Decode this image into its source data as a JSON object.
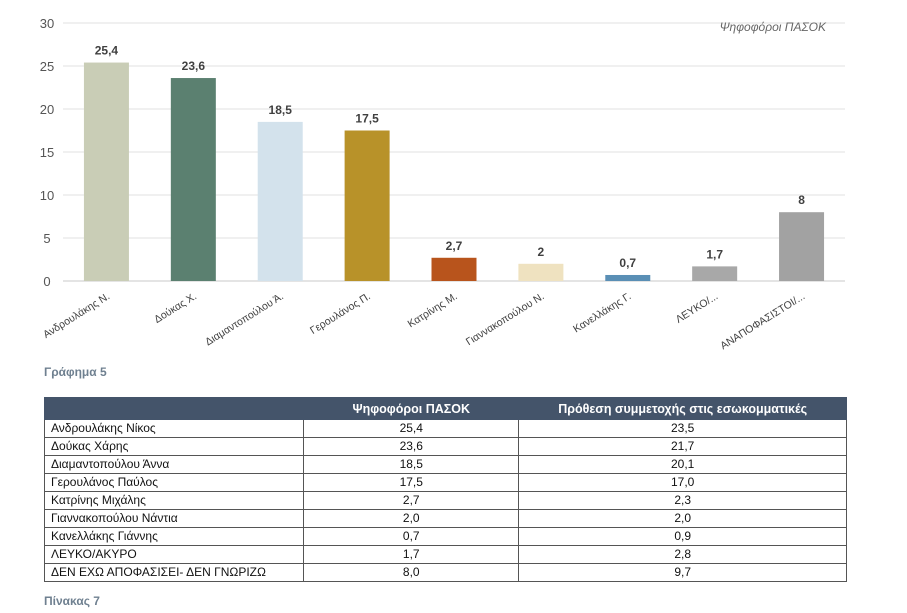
{
  "chart_data": {
    "type": "bar",
    "legend_note": "Ψηφοφόροι ΠΑΣΟΚ",
    "categories": [
      "Ανδρουλάκης Ν.",
      "Δούκας Χ.",
      "Διαμαντοπούλου Ά.",
      "Γερουλάνος Π.",
      "Κατρίνης Μ.",
      "Γιαννακοπούλου Ν.",
      "Κανελλάκης Γ.",
      "ΛΕΥΚΟ/...",
      "ΑΝΑΠΟΦΑΣΙΣΤΟΙ/..."
    ],
    "values": [
      25.4,
      23.6,
      18.5,
      17.5,
      2.7,
      2,
      0.7,
      1.7,
      8
    ],
    "value_labels": [
      "25,4",
      "23,6",
      "18,5",
      "17,5",
      "2,7",
      "2",
      "0,7",
      "1,7",
      "8"
    ],
    "colors": [
      "#c9cdb6",
      "#5b8070",
      "#d3e2ec",
      "#b89229",
      "#b8541c",
      "#efe2c0",
      "#5a8fb5",
      "#a8a8a8",
      "#a2a2a2"
    ],
    "ylim": [
      0,
      30
    ],
    "yticks": [
      0,
      5,
      10,
      15,
      20,
      25,
      30
    ],
    "grid": true
  },
  "captions": {
    "chart": "Γράφημα 5",
    "table": "Πίνακας 7"
  },
  "table": {
    "headers": [
      "",
      "Ψηφοφόροι ΠΑΣΟΚ",
      "Πρόθεση συμμετοχής στις εσωκομματικές"
    ],
    "rows": [
      [
        "Ανδρουλάκης Νίκος",
        "25,4",
        "23,5"
      ],
      [
        "Δούκας Χάρης",
        "23,6",
        "21,7"
      ],
      [
        "Διαμαντοπούλου Άννα",
        "18,5",
        "20,1"
      ],
      [
        "Γερουλάνος Παύλος",
        "17,5",
        "17,0"
      ],
      [
        "Κατρίνης Μιχάλης",
        "2,7",
        "2,3"
      ],
      [
        "Γιαννακοπούλου Νάντια",
        "2,0",
        "2,0"
      ],
      [
        "Κανελλάκης Γιάννης",
        "0,7",
        "0,9"
      ],
      [
        "ΛΕΥΚΟ/ΑΚΥΡΟ",
        "1,7",
        "2,8"
      ],
      [
        "ΔΕΝ ΕΧΩ ΑΠΟΦΑΣΙΣΕΙ- ΔΕΝ ΓΝΩΡΙΖΩ",
        "8,0",
        "9,7"
      ]
    ]
  }
}
